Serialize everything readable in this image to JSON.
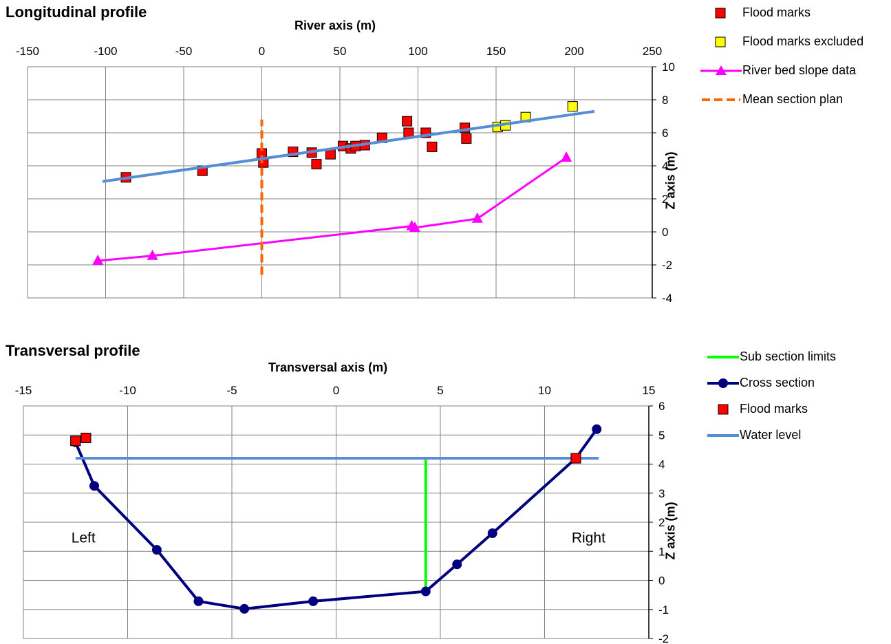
{
  "chart_data": [
    {
      "type": "scatter",
      "title": "Longitudinal profile",
      "xlabel": "River axis (m)",
      "ylabel": "Z axis (m)",
      "xlim": [
        -150,
        250
      ],
      "ylim": [
        -4,
        10
      ],
      "xticks": [
        -150,
        -100,
        -50,
        0,
        50,
        100,
        150,
        200,
        250
      ],
      "yticks": [
        -4,
        -2,
        0,
        2,
        4,
        6,
        8,
        10
      ],
      "grid": true,
      "legend_position": "right",
      "legend": [
        "Flood marks",
        "Flood marks excluded",
        "River bed slope data",
        "Mean section plan"
      ],
      "series": [
        {
          "name": "Flood marks",
          "color": "#ff0000",
          "marker": "square",
          "points": [
            [
              -87,
              3.3
            ],
            [
              -38,
              3.7
            ],
            [
              0,
              4.75
            ],
            [
              1,
              4.2
            ],
            [
              20,
              4.85
            ],
            [
              32,
              4.8
            ],
            [
              35,
              4.1
            ],
            [
              44,
              4.7
            ],
            [
              52,
              5.2
            ],
            [
              57,
              5.05
            ],
            [
              60,
              5.2
            ],
            [
              66,
              5.25
            ],
            [
              77,
              5.7
            ],
            [
              93,
              6.7
            ],
            [
              94,
              6.0
            ],
            [
              105,
              6.0
            ],
            [
              109,
              5.15
            ],
            [
              130,
              6.3
            ],
            [
              131,
              5.65
            ]
          ]
        },
        {
          "name": "Flood marks excluded",
          "color": "#ffff00",
          "marker": "square",
          "points": [
            [
              151,
              6.35
            ],
            [
              156,
              6.45
            ],
            [
              169,
              6.95
            ],
            [
              199,
              7.6
            ]
          ]
        },
        {
          "name": "River bed slope data",
          "color": "#ff00ff",
          "marker": "triangle",
          "points": [
            [
              -105,
              -1.75
            ],
            [
              -70,
              -1.45
            ],
            [
              96,
              0.35
            ],
            [
              98,
              0.25
            ],
            [
              138,
              0.8
            ],
            [
              195,
              4.5
            ]
          ]
        },
        {
          "name": "Mean section plan",
          "color": "#ff6600",
          "style": "dashed",
          "points": [
            [
              0,
              -2.6
            ],
            [
              0,
              6.8
            ]
          ]
        },
        {
          "name": "Water level line",
          "color": "#558ed5",
          "style": "line",
          "points": [
            [
              -102,
              3.05
            ],
            [
              213,
              7.3
            ]
          ]
        }
      ]
    },
    {
      "type": "line",
      "title": "Transversal profile",
      "xlabel": "Transversal axis (m)",
      "ylabel": "Z axis (m)",
      "xlim": [
        -15,
        15
      ],
      "ylim": [
        -2,
        6
      ],
      "xticks": [
        -15,
        -10,
        -5,
        0,
        5,
        10,
        15
      ],
      "yticks": [
        -2,
        -1,
        0,
        1,
        2,
        3,
        4,
        5,
        6
      ],
      "grid": true,
      "legend_position": "right",
      "legend": [
        "Sub section limits",
        "Cross section",
        "Flood marks",
        "Water level"
      ],
      "annotations": [
        "Left",
        "Right"
      ],
      "series": [
        {
          "name": "Sub section limits",
          "color": "#00ff00",
          "style": "line",
          "points": [
            [
              4.3,
              -0.4
            ],
            [
              4.3,
              4.2
            ]
          ]
        },
        {
          "name": "Cross section",
          "color": "#00007f",
          "marker": "circle",
          "points": [
            [
              -12.5,
              4.75
            ],
            [
              -11.6,
              3.25
            ],
            [
              -8.6,
              1.05
            ],
            [
              -6.6,
              -0.72
            ],
            [
              -4.4,
              -0.98
            ],
            [
              -1.1,
              -0.72
            ],
            [
              4.3,
              -0.38
            ],
            [
              5.8,
              0.55
            ],
            [
              7.5,
              1.62
            ],
            [
              11.5,
              4.2
            ],
            [
              12.5,
              5.2
            ]
          ]
        },
        {
          "name": "Flood marks",
          "color": "#ff0000",
          "marker": "square",
          "points": [
            [
              -12.5,
              4.8
            ],
            [
              -12.0,
              4.9
            ],
            [
              11.5,
              4.2
            ]
          ]
        },
        {
          "name": "Water level",
          "color": "#558ed5",
          "style": "line",
          "points": [
            [
              -12.5,
              4.2
            ],
            [
              12.6,
              4.2
            ]
          ]
        }
      ]
    }
  ]
}
